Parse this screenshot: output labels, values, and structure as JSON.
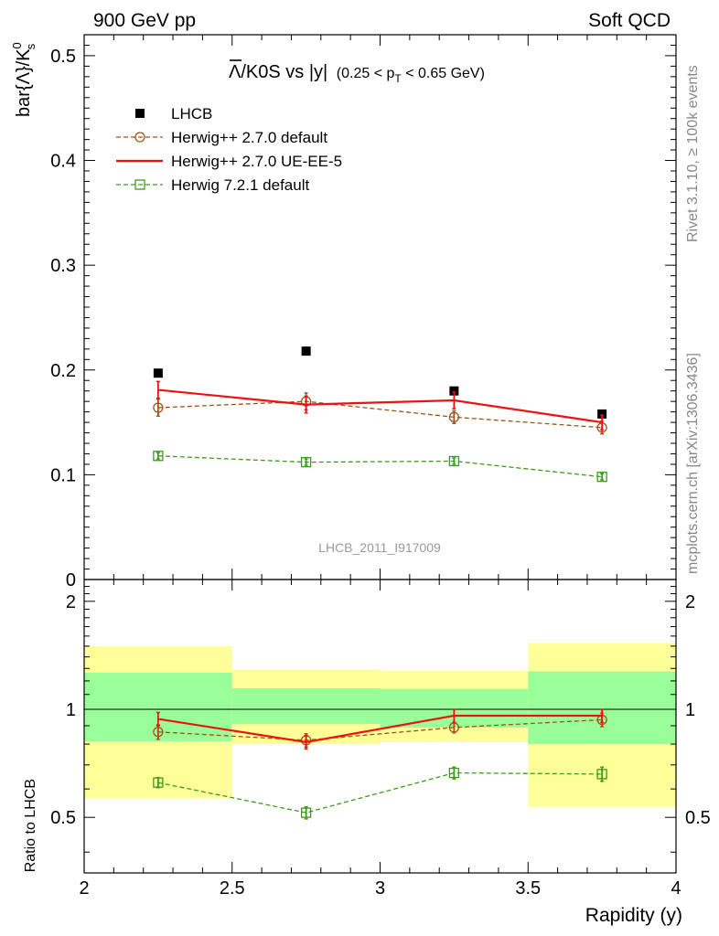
{
  "header": {
    "left": "900 GeV pp",
    "right": "Soft QCD"
  },
  "side_labels": {
    "rivet": "Rivet 3.1.10, ≥ 100k events",
    "mcplots": "mcplots.cern.ch [arXiv:1306.3436]"
  },
  "watermark": "LHCB_2011_I917009",
  "chart_data": {
    "type": "line",
    "title": {
      "main": "Λ/K0S vs |y|",
      "cut": "(0.25 < p",
      "cut_sub": "T",
      "cut_end": " < 0.65 GeV)"
    },
    "ylabel": {
      "main": "bar{Λ}/K",
      "sup": "0",
      "sub": "s"
    },
    "ratio_ylabel": "Ratio to LHCB",
    "xlabel": "Rapidity (y)",
    "xlim": [
      2,
      4
    ],
    "ylim": [
      0,
      0.52
    ],
    "ratio_ylim": [
      0.35,
      2.3
    ],
    "ratio_scale": "log",
    "x_ticks": [
      "2",
      "2.5",
      "3",
      "3.5",
      "4"
    ],
    "y_ticks": [
      "0",
      "0.1",
      "0.2",
      "0.3",
      "0.4",
      "0.5"
    ],
    "ratio_ticks": [
      "0.5",
      "1",
      "2"
    ],
    "legend_position": "top-left",
    "bins": [
      [
        2.0,
        2.5
      ],
      [
        2.5,
        3.0
      ],
      [
        3.0,
        3.5
      ],
      [
        3.5,
        4.0
      ]
    ],
    "x": [
      2.25,
      2.75,
      3.25,
      3.75
    ],
    "data": {
      "name": "LHCB",
      "values": [
        0.197,
        0.218,
        0.18,
        0.158
      ],
      "band_inner": [
        [
          0.815,
          1.265
        ],
        [
          0.91,
          1.145
        ],
        [
          0.89,
          1.14
        ],
        [
          0.8,
          1.275
        ]
      ],
      "band_outer": [
        [
          0.565,
          1.5
        ],
        [
          0.8,
          1.29
        ],
        [
          0.81,
          1.28
        ],
        [
          0.535,
          1.53
        ]
      ]
    },
    "series": [
      {
        "name": "Herwig++ 2.7.0 default",
        "color": "#a0521a",
        "marker": "circle",
        "dashed": true,
        "values": [
          0.164,
          0.17,
          0.155,
          0.145
        ],
        "errors": [
          0.008,
          0.008,
          0.006,
          0.006
        ],
        "ratio": [
          0.865,
          0.82,
          0.89,
          0.935
        ],
        "ratio_errors": [
          0.04,
          0.035,
          0.03,
          0.04
        ]
      },
      {
        "name": "Herwig++ 2.7.0 UE-EE-5",
        "color": "#ee1111",
        "marker": "none",
        "dashed": false,
        "values": [
          0.181,
          0.167,
          0.171,
          0.15
        ],
        "errors": [
          0.008,
          0.008,
          0.008,
          0.007
        ],
        "ratio": [
          0.94,
          0.81,
          0.96,
          0.96
        ],
        "ratio_errors": [
          0.04,
          0.035,
          0.04,
          0.04
        ]
      },
      {
        "name": "Herwig 7.2.1 default",
        "color": "#3f9a1a",
        "marker": "square",
        "dashed": true,
        "values": [
          0.118,
          0.112,
          0.113,
          0.098
        ],
        "errors": [
          0.003,
          0.003,
          0.003,
          0.003
        ],
        "ratio": [
          0.625,
          0.515,
          0.665,
          0.66
        ],
        "ratio_errors": [
          0.02,
          0.02,
          0.025,
          0.03
        ]
      }
    ]
  }
}
